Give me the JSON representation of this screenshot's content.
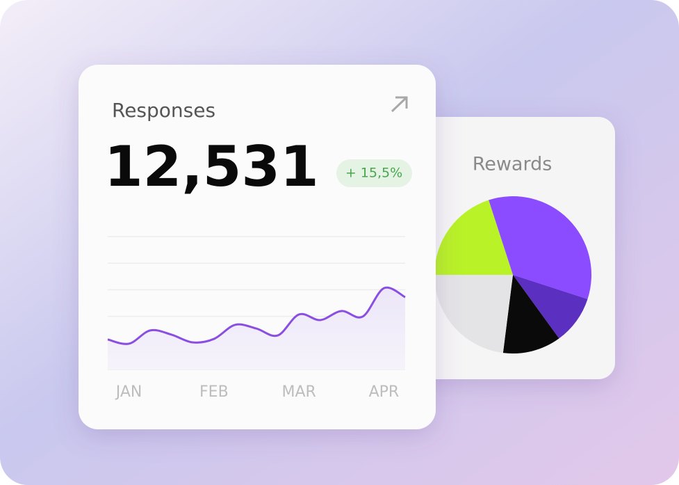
{
  "chart_data": [
    {
      "type": "line",
      "title": "Responses",
      "annotations": [
        "12,531",
        "+ 15,5%"
      ],
      "categories": [
        null,
        "JAN",
        null,
        null,
        null,
        "FEB",
        null,
        null,
        null,
        "MAR",
        null,
        null,
        null,
        "APR",
        null
      ],
      "values": [
        1.13,
        0.97,
        1.47,
        1.31,
        1.02,
        1.15,
        1.68,
        1.54,
        1.28,
        2.07,
        1.86,
        2.2,
        1.99,
        3.06,
        2.72
      ],
      "color": "#8a4fe0",
      "ylim": [
        0,
        5
      ],
      "yticks": [
        0,
        1,
        2,
        3,
        4,
        5
      ],
      "grid": true
    },
    {
      "type": "pie",
      "title": "Rewards",
      "start_angle": -18,
      "values": [
        35,
        10,
        12,
        23,
        20
      ],
      "colors": [
        "#8b4bff",
        "#5b2fc0",
        "#0a0a0a",
        "#e4e4e6",
        "#b8f227"
      ]
    }
  ]
}
